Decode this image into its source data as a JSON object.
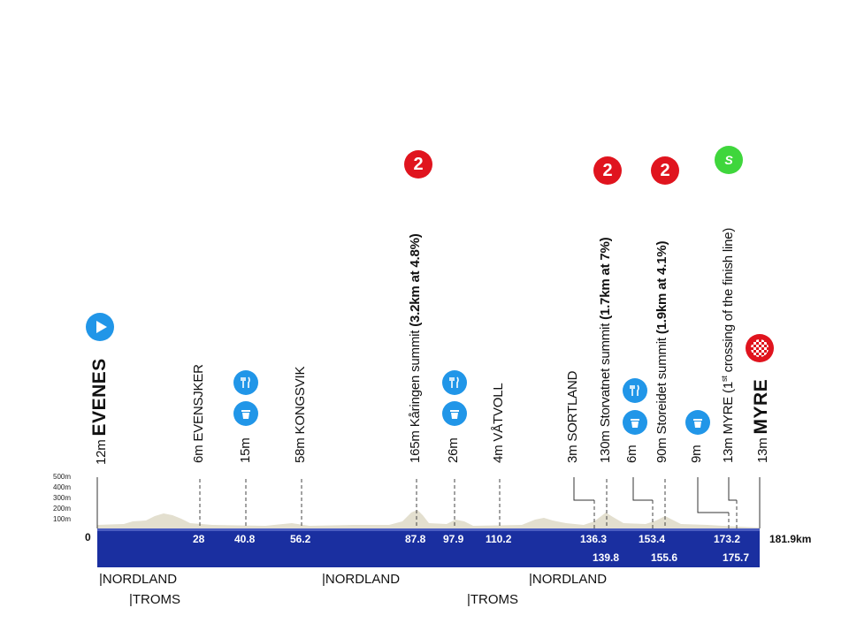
{
  "profile": {
    "total_distance": "181.9km",
    "zero_label": "0",
    "axis_labels": [
      "500m",
      "400m",
      "300m",
      "200m",
      "100m"
    ]
  },
  "waypoints": [
    {
      "id": "start",
      "text": "12m",
      "name": "EVENES",
      "bold_name": true
    },
    {
      "id": "evensjker",
      "text": "6m EVENSJKER"
    },
    {
      "id": "feed1",
      "text": "15m"
    },
    {
      "id": "kongsvik",
      "text": "58m KONGSVIK"
    },
    {
      "id": "karingen",
      "text": "165m Kåringen summit",
      "climb": "(3.2km at 4.8%)"
    },
    {
      "id": "feed2",
      "text": "26m"
    },
    {
      "id": "vatvoll",
      "text": "4m VÅTVOLL"
    },
    {
      "id": "sortland",
      "text": "3m SORTLAND"
    },
    {
      "id": "storvatnet",
      "text": "130m Storvatnet summit",
      "climb": "(1.7km at 7%)"
    },
    {
      "id": "waste1",
      "text": "6m"
    },
    {
      "id": "storeidet",
      "text": "90m Storeidet summit",
      "climb": "(1.9km at 4.1%)"
    },
    {
      "id": "waste2",
      "text": "9m"
    },
    {
      "id": "myre1",
      "text": "13m MYRE",
      "note_pre": "(1",
      "note_sup": "st",
      "note_post": " crossing of the finish line)"
    },
    {
      "id": "finish",
      "text": "13m",
      "name": "MYRE",
      "bold_name": true
    }
  ],
  "km_markers_top": [
    "28",
    "40.8",
    "56.2",
    "87.8",
    "97.9",
    "110.2",
    "136.3",
    "153.4",
    "173.2"
  ],
  "km_markers_bottom": [
    "139.8",
    "155.6",
    "175.7"
  ],
  "kom_badges": [
    "2",
    "2",
    "2"
  ],
  "sprint_badge": "S",
  "regions": [
    "|NORDLAND",
    "|TROMS",
    "|NORDLAND",
    "|TROMS",
    "|NORDLAND"
  ],
  "colors": {
    "bar": "#1a2fa0",
    "kom": "#e0141e",
    "feed": "#2196e8",
    "sprint": "#3fd63c",
    "start": "#2196e8",
    "terrain": "#e3dfcf"
  }
}
